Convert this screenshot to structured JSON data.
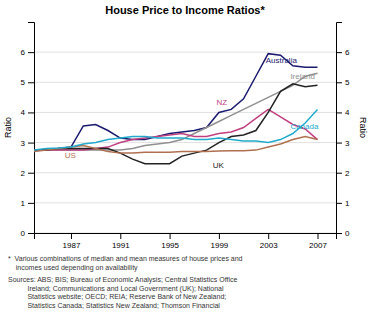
{
  "chart_data": {
    "type": "line",
    "title": "House Price to Income Ratios*",
    "ylabel": "Ratio",
    "y2label": "Ratio",
    "x": [
      1984,
      1985,
      1986,
      1987,
      1988,
      1989,
      1990,
      1991,
      1992,
      1993,
      1994,
      1995,
      1996,
      1997,
      1998,
      1999,
      2000,
      2001,
      2002,
      2003,
      2004,
      2005,
      2006,
      2007
    ],
    "xlim": [
      1984,
      2008.5
    ],
    "xticks": [
      1987,
      1991,
      1995,
      1999,
      2003,
      2007
    ],
    "ylim": [
      0,
      7
    ],
    "yticks": [
      0,
      1,
      2,
      3,
      4,
      5,
      6
    ],
    "y2lim": [
      0,
      7
    ],
    "y2ticks": [
      0,
      1,
      2,
      3,
      4,
      5,
      6
    ],
    "grid": true,
    "series": [
      {
        "name": "Australia",
        "color": "#1a1a6e",
        "values": [
          2.75,
          2.75,
          2.8,
          2.85,
          3.55,
          3.6,
          3.4,
          3.15,
          3.1,
          3.1,
          3.2,
          3.3,
          3.35,
          3.4,
          3.5,
          4.0,
          4.1,
          4.45,
          5.2,
          5.95,
          5.9,
          5.55,
          5.5,
          5.5
        ]
      },
      {
        "name": "Ireland",
        "color": "#909090",
        "values": [
          2.75,
          2.75,
          2.75,
          2.75,
          2.75,
          2.75,
          2.75,
          2.75,
          2.8,
          2.9,
          2.95,
          3.0,
          3.1,
          3.3,
          3.5,
          3.7,
          3.9,
          4.1,
          4.3,
          4.5,
          4.7,
          4.9,
          5.2,
          5.3
        ]
      },
      {
        "name": "NZ",
        "color": "#c04080",
        "values": [
          2.75,
          2.75,
          2.75,
          2.75,
          2.75,
          2.8,
          2.85,
          3.0,
          3.1,
          3.15,
          3.2,
          3.25,
          3.3,
          3.2,
          3.2,
          3.3,
          3.35,
          3.5,
          3.8,
          4.1,
          3.85,
          3.6,
          3.45,
          3.1
        ]
      },
      {
        "name": "UK",
        "color": "#222222",
        "values": [
          2.75,
          2.75,
          2.8,
          2.8,
          2.8,
          2.8,
          2.8,
          2.65,
          2.45,
          2.3,
          2.3,
          2.3,
          2.55,
          2.65,
          2.75,
          3.0,
          3.2,
          3.25,
          3.4,
          4.0,
          4.7,
          4.95,
          4.85,
          4.9
        ]
      },
      {
        "name": "US",
        "color": "#b07050",
        "values": [
          2.7,
          2.75,
          2.8,
          2.85,
          2.9,
          2.8,
          2.7,
          2.65,
          2.65,
          2.68,
          2.68,
          2.68,
          2.7,
          2.7,
          2.7,
          2.72,
          2.73,
          2.73,
          2.75,
          2.85,
          2.95,
          3.1,
          3.2,
          3.1
        ]
      },
      {
        "name": "Canada",
        "color": "#20aacc",
        "values": [
          2.75,
          2.8,
          2.82,
          2.85,
          2.95,
          3.0,
          3.1,
          3.15,
          3.2,
          3.2,
          3.15,
          3.15,
          3.15,
          3.1,
          3.1,
          3.15,
          3.1,
          3.05,
          3.05,
          3.0,
          3.1,
          3.3,
          3.65,
          4.1
        ]
      }
    ],
    "annotations": [
      {
        "text": "Australia",
        "x": 2002.8,
        "y": 5.72
      },
      {
        "text": "Ireland",
        "x": 2004.8,
        "y": 5.18
      },
      {
        "text": "NZ",
        "x": 1998.8,
        "y": 4.3
      },
      {
        "text": "UK",
        "x": 1998.5,
        "y": 2.22
      },
      {
        "text": "US",
        "x": 1986.5,
        "y": 2.57
      },
      {
        "text": "Canada",
        "x": 2004.8,
        "y": 3.52
      }
    ],
    "footnotes": [
      "*  Various combinations of median and mean measures of house prices and\n    incomes used depending on availability",
      "Sources: ABS; BIS; Bureau of Economic Analysis; Central Statistics Office\n          Ireland; Communications and Local Government (UK); National\n          Statistics website; OECD; REIA; Reserve Bank of New Zealand;\n          Statistics Canada; Statistics New Zealand; Thomson Financial"
    ]
  }
}
